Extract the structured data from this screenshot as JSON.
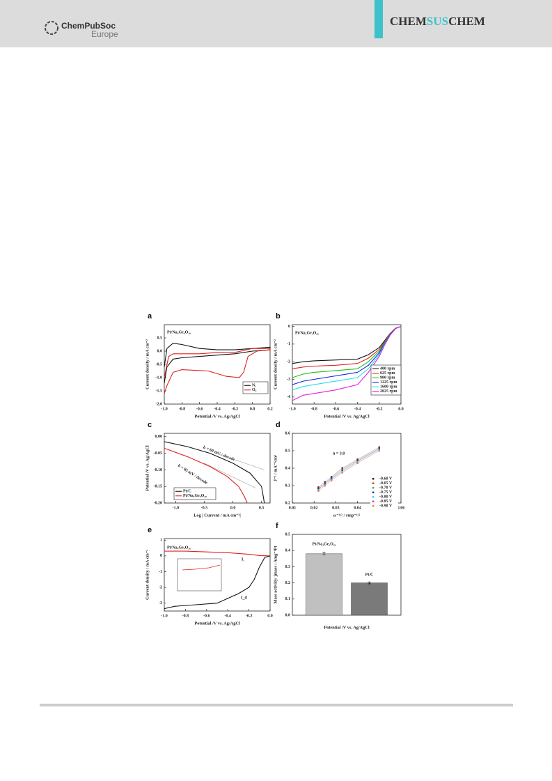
{
  "header": {
    "logo_line1": "ChemPubSoc",
    "logo_line2": "Europe",
    "journal_parts": [
      "CHEM",
      "SUS",
      "CHEM"
    ]
  },
  "figure": {
    "panels": [
      {
        "label": "a",
        "type": "line",
        "xlabel": "Potential /V vs. Ag/AgCl",
        "ylabel": "Current density / mA cm⁻²",
        "xlim": [
          -1.0,
          0.2
        ],
        "ylim": [
          -2.0,
          1.0
        ],
        "xticks": [
          {
            "value": -1.0,
            "label": "-1.0"
          },
          {
            "value": -0.8,
            "label": "-0.8"
          },
          {
            "value": -0.6,
            "label": "-0.6"
          },
          {
            "value": -0.4,
            "label": "-0.4"
          },
          {
            "value": -0.2,
            "label": "-0.2"
          },
          {
            "value": 0.0,
            "label": "0.0"
          },
          0.2
        ],
        "yticks": [
          {
            "value": -2.0,
            "label": "-2.0"
          },
          -1.5,
          {
            "value": -1.0,
            "label": "-1.0"
          },
          -0.5,
          {
            "value": 0.0,
            "label": "0.0"
          },
          0.5
        ],
        "annotations": [
          "Pt/Na₄Ge₉O₂₀"
        ],
        "series": [
          {
            "name": "N₂",
            "color": "#111111",
            "x": [
              -1.0,
              -0.97,
              -0.9,
              -0.8,
              -0.6,
              -0.4,
              -0.2,
              0.0,
              0.2,
              0.2,
              0.0,
              -0.2,
              -0.4,
              -0.6,
              -0.8,
              -0.9,
              -0.97,
              -1.0
            ],
            "values": [
              -0.6,
              0.1,
              0.3,
              0.25,
              0.1,
              0.05,
              0.05,
              0.1,
              0.15,
              0.05,
              0.0,
              -0.1,
              -0.15,
              -0.2,
              -0.25,
              -0.3,
              -0.6,
              -1.2
            ]
          },
          {
            "name": "O₂",
            "color": "#e02020",
            "x": [
              -1.0,
              -0.95,
              -0.9,
              -0.6,
              -0.4,
              -0.2,
              0.0,
              0.2,
              0.2,
              0.05,
              -0.05,
              -0.1,
              -0.15,
              -0.3,
              -0.5,
              -0.8,
              -0.9,
              -0.97,
              -1.0
            ],
            "values": [
              -1.0,
              -0.2,
              -0.1,
              -0.1,
              -0.05,
              -0.05,
              0.1,
              0.1,
              0.05,
              0.0,
              -0.2,
              -0.8,
              -1.0,
              -0.95,
              -0.75,
              -0.7,
              -0.8,
              -1.3,
              -1.6
            ]
          }
        ]
      },
      {
        "label": "b",
        "type": "line",
        "xlabel": "Potential /V vs. Ag/AgCl",
        "ylabel": "Current density / mA cm⁻²",
        "xlim": [
          -1.0,
          0.0
        ],
        "ylim": [
          -4.4,
          0.1
        ],
        "xticks": [
          {
            "value": -1.0,
            "label": "-1.0"
          },
          {
            "value": -0.8,
            "label": "-0.8"
          },
          {
            "value": -0.6,
            "label": "-0.6"
          },
          {
            "value": -0.4,
            "label": "-0.4"
          },
          {
            "value": -0.2,
            "label": "-0.2"
          },
          {
            "value": 0.0,
            "label": "0.0"
          }
        ],
        "yticks": [
          -4,
          -3,
          -2,
          -1,
          0
        ],
        "annotations": [
          "Pt/Na₄Ge₉O₂₀"
        ],
        "series": [
          {
            "name": "400 rpm",
            "color": "#111111",
            "x": [
              -1.0,
              -0.9,
              -0.8,
              -0.6,
              -0.4,
              -0.3,
              -0.2,
              -0.15,
              -0.1,
              -0.05,
              0.0
            ],
            "values": [
              -2.1,
              -2.0,
              -1.95,
              -1.9,
              -1.85,
              -1.6,
              -1.2,
              -0.8,
              -0.4,
              -0.1,
              0.0
            ]
          },
          {
            "name": "625 rpm",
            "color": "#e02020",
            "x": [
              -1.0,
              -0.9,
              -0.8,
              -0.6,
              -0.4,
              -0.3,
              -0.2,
              -0.15,
              -0.1,
              -0.05,
              0.0
            ],
            "values": [
              -2.4,
              -2.3,
              -2.25,
              -2.2,
              -2.1,
              -1.8,
              -1.3,
              -0.85,
              -0.42,
              -0.1,
              0.0
            ]
          },
          {
            "name": "900 rpm",
            "color": "#20c020",
            "x": [
              -1.0,
              -0.9,
              -0.8,
              -0.6,
              -0.4,
              -0.3,
              -0.2,
              -0.15,
              -0.1,
              -0.05,
              0.0
            ],
            "values": [
              -2.9,
              -2.7,
              -2.6,
              -2.5,
              -2.4,
              -2.0,
              -1.4,
              -0.9,
              -0.45,
              -0.12,
              0.0
            ]
          },
          {
            "name": "1225 rpm",
            "color": "#1020e0",
            "x": [
              -1.0,
              -0.9,
              -0.8,
              -0.6,
              -0.4,
              -0.3,
              -0.2,
              -0.15,
              -0.1,
              -0.05,
              0.0
            ],
            "values": [
              -3.3,
              -3.1,
              -3.0,
              -2.8,
              -2.6,
              -2.2,
              -1.5,
              -0.95,
              -0.47,
              -0.12,
              0.0
            ]
          },
          {
            "name": "1600 rpm",
            "color": "#20e0f0",
            "x": [
              -1.0,
              -0.9,
              -0.8,
              -0.6,
              -0.4,
              -0.3,
              -0.2,
              -0.15,
              -0.1,
              -0.05,
              0.0
            ],
            "values": [
              -3.6,
              -3.4,
              -3.3,
              -3.1,
              -2.9,
              -2.4,
              -1.6,
              -1.0,
              -0.5,
              -0.13,
              0.0
            ]
          },
          {
            "name": "2025 rpm",
            "color": "#e020e0",
            "x": [
              -1.0,
              -0.9,
              -0.8,
              -0.6,
              -0.4,
              -0.3,
              -0.2,
              -0.15,
              -0.1,
              -0.05,
              0.0
            ],
            "values": [
              -4.2,
              -3.9,
              -3.8,
              -3.6,
              -3.3,
              -2.6,
              -1.7,
              -1.05,
              -0.5,
              -0.13,
              0.0
            ]
          }
        ]
      },
      {
        "label": "c",
        "type": "line",
        "xlabel": "Log | Current  / mA cm⁻²|",
        "ylabel": "Potential /V vs. Ag/AgCl",
        "xlim": [
          -1.2,
          0.65
        ],
        "ylim": [
          -0.2,
          0.01
        ],
        "xticks": [
          {
            "value": -1.0,
            "label": "-1.0"
          },
          -0.5,
          {
            "value": 0.0,
            "label": "0.0"
          },
          0.5
        ],
        "yticks": [
          {
            "value": -0.2,
            "label": "-0.20"
          },
          -0.15,
          {
            "value": -0.1,
            "label": "-0.10"
          },
          -0.05,
          {
            "value": 0.0,
            "label": "0.00"
          }
        ],
        "annotations": [
          "b = 60 mV / decade",
          "b = 85 mV / decade"
        ],
        "fit_lines": [
          {
            "color": "#999999",
            "x": [
              -0.3,
              0.55
            ],
            "values": [
              -0.05,
              -0.1
            ]
          },
          {
            "color": "#999999",
            "x": [
              -0.5,
              0.4
            ],
            "values": [
              -0.08,
              -0.155
            ]
          }
        ],
        "series": [
          {
            "name": "Pt/C",
            "color": "#111111",
            "x": [
              -1.2,
              -0.8,
              -0.4,
              0.0,
              0.3,
              0.5,
              0.55
            ],
            "values": [
              -0.015,
              -0.03,
              -0.05,
              -0.08,
              -0.11,
              -0.15,
              -0.2
            ]
          },
          {
            "name": "Pt/Na₄Ge₉O₂₀",
            "color": "#e02020",
            "x": [
              -1.2,
              -0.8,
              -0.4,
              -0.1,
              0.1,
              0.2,
              0.25
            ],
            "values": [
              -0.035,
              -0.06,
              -0.09,
              -0.12,
              -0.15,
              -0.18,
              -0.2
            ]
          }
        ]
      },
      {
        "label": "d",
        "type": "scatter",
        "xlabel": "ω⁻¹/² / rmp⁻¹/²",
        "ylabel": "J⁻¹ / mA⁻¹cm²",
        "xlim": [
          0.01,
          0.06
        ],
        "ylim": [
          0.2,
          0.6
        ],
        "xticks": [
          0.01,
          0.02,
          0.03,
          0.04,
          0.05,
          0.06
        ],
        "yticks": [
          0.2,
          0.3,
          0.4,
          0.5,
          0.6
        ],
        "annotations": [
          "n = 3.8"
        ],
        "series": [
          {
            "name": "-0.60 V",
            "color": "#111111",
            "x": [
              0.022,
              0.025,
              0.028,
              0.033,
              0.04,
              0.05
            ],
            "values": [
              0.29,
              0.32,
              0.35,
              0.4,
              0.45,
              0.52
            ]
          },
          {
            "name": "-0.65 V",
            "color": "#e02020",
            "x": [
              0.022,
              0.025,
              0.028,
              0.033,
              0.04,
              0.05
            ],
            "values": [
              0.285,
              0.315,
              0.345,
              0.395,
              0.445,
              0.515
            ]
          },
          {
            "name": "-0.70 V",
            "color": "#20c020",
            "x": [
              0.022,
              0.025,
              0.028,
              0.033,
              0.04,
              0.05
            ],
            "values": [
              0.28,
              0.31,
              0.34,
              0.39,
              0.44,
              0.51
            ]
          },
          {
            "name": "-0.75 V",
            "color": "#1020e0",
            "x": [
              0.022,
              0.025,
              0.028,
              0.033,
              0.04,
              0.05
            ],
            "values": [
              0.28,
              0.31,
              0.34,
              0.385,
              0.44,
              0.51
            ]
          },
          {
            "name": "-0.80 V",
            "color": "#20e0f0",
            "x": [
              0.022,
              0.025,
              0.028,
              0.033,
              0.04,
              0.05
            ],
            "values": [
              0.275,
              0.305,
              0.335,
              0.38,
              0.435,
              0.505
            ]
          },
          {
            "name": "-0.85 V",
            "color": "#e020e0",
            "x": [
              0.022,
              0.025,
              0.028,
              0.033,
              0.04,
              0.05
            ],
            "values": [
              0.27,
              0.3,
              0.33,
              0.375,
              0.43,
              0.5
            ]
          },
          {
            "name": "-0.90 V",
            "color": "#f08020",
            "x": [
              0.022,
              0.025,
              0.028,
              0.033,
              0.04,
              0.05
            ],
            "values": [
              0.27,
              0.3,
              0.33,
              0.375,
              0.43,
              0.5
            ]
          }
        ]
      },
      {
        "label": "e",
        "type": "line",
        "xlabel": "Potential /V vs. Ag/AgCl",
        "ylabel": "Current density / mA cm⁻²",
        "xlim": [
          -1.0,
          0.0
        ],
        "ylim": [
          -3.5,
          1.1
        ],
        "xticks": [
          {
            "value": -1.0,
            "label": "-1.0"
          },
          {
            "value": -0.8,
            "label": "-0.8"
          },
          {
            "value": -0.6,
            "label": "-0.6"
          },
          {
            "value": -0.4,
            "label": "-0.4"
          },
          {
            "value": -0.2,
            "label": "-0.2"
          },
          {
            "value": 0.0,
            "label": "0.0"
          }
        ],
        "yticks": [
          -3,
          -2,
          -1,
          0,
          1
        ],
        "annotations": [
          "Pt/Na₄Ge₉O₂₀",
          "I₁",
          "I_d"
        ],
        "series": [
          {
            "color": "#e02020",
            "x": [
              -1.0,
              -0.8,
              -0.6,
              -0.4,
              -0.2,
              -0.1,
              0.0
            ],
            "values": [
              0.3,
              0.3,
              0.25,
              0.2,
              0.1,
              0.02,
              0.0
            ]
          },
          {
            "color": "#111111",
            "x": [
              -1.0,
              -0.9,
              -0.7,
              -0.5,
              -0.4,
              -0.3,
              -0.2,
              -0.15,
              -0.1,
              -0.05,
              0.0
            ],
            "values": [
              -3.35,
              -3.2,
              -3.1,
              -3.0,
              -2.7,
              -2.4,
              -2.0,
              -1.5,
              -0.7,
              -0.1,
              0.0
            ]
          }
        ]
      },
      {
        "label": "f",
        "type": "bar",
        "xlabel": "Potential /V vs. Ag/AgCl",
        "ylabel": "Mass activity/ jmass / Amg⁻¹Pt",
        "ylim": [
          0.0,
          0.5
        ],
        "yticks": [
          {
            "value": 0.0,
            "label": "0.0"
          },
          0.1,
          0.2,
          0.3,
          0.4,
          0.5
        ],
        "categories": [
          "Pt/Na₄Ge₉O₂₀",
          "Pt/C"
        ],
        "values": [
          0.38,
          0.2
        ],
        "errors": [
          0.008,
          0.006
        ],
        "colors": [
          "#c0c0c0",
          "#7a7a7a"
        ]
      }
    ]
  }
}
